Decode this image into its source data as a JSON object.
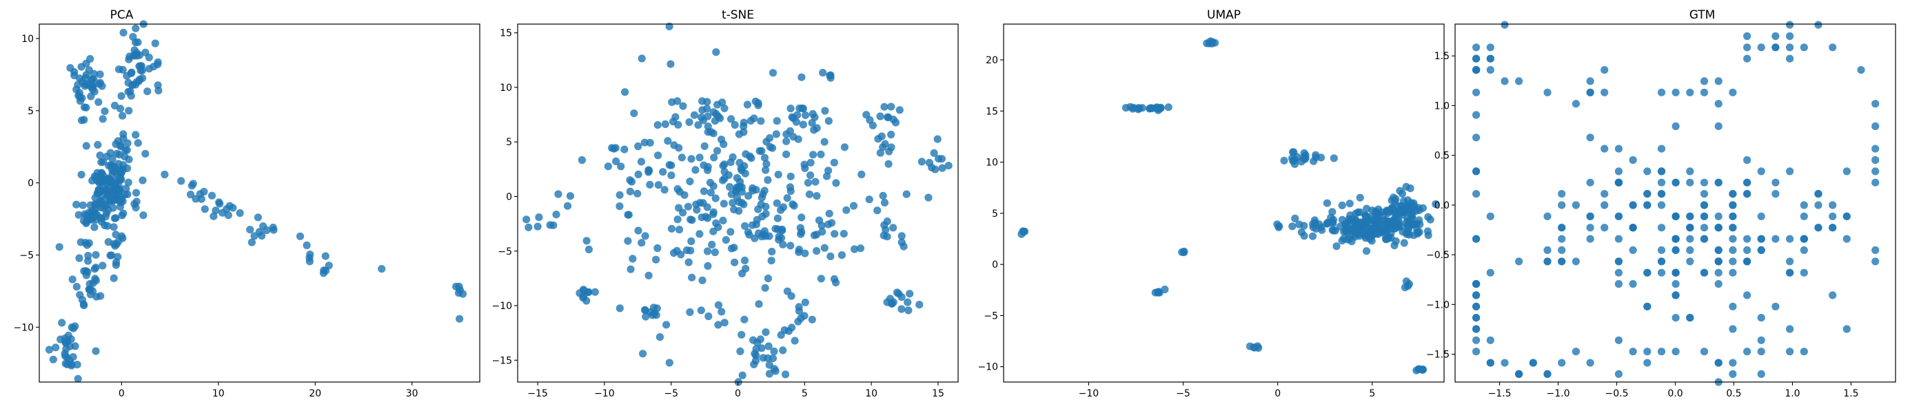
{
  "colors": {
    "marker": "#1f77b4",
    "marker_opacity": 0.8
  },
  "chart_data": [
    {
      "type": "scatter",
      "title": "PCA",
      "xlim": [
        -8.5,
        37
      ],
      "ylim": [
        -13.8,
        11
      ],
      "xticks": [
        0,
        10,
        20,
        30
      ],
      "yticks": [
        -10,
        -5,
        0,
        5,
        10
      ],
      "xtick_labels": [
        "0",
        "10",
        "20",
        "30"
      ],
      "ytick_labels": [
        "−10",
        "−5",
        "0",
        "5",
        "10"
      ],
      "grid": false,
      "clusters": [
        {
          "cx": -1,
          "cy": 0,
          "sx": 1.4,
          "sy": 1.5,
          "n": 150
        },
        {
          "cx": -3.5,
          "cy": 6.8,
          "sx": 0.9,
          "sy": 1.0,
          "n": 40
        },
        {
          "cx": 2,
          "cy": 8.5,
          "sx": 1.0,
          "sy": 0.9,
          "n": 40
        },
        {
          "cx": 0.5,
          "cy": 6.3,
          "sx": 0.5,
          "sy": 0.8,
          "n": 10
        },
        {
          "cx": -3,
          "cy": -2.5,
          "sx": 0.8,
          "sy": 0.8,
          "n": 30
        },
        {
          "cx": -0.5,
          "cy": -4.5,
          "sx": 0.5,
          "sy": 0.8,
          "n": 15
        },
        {
          "cx": -3.5,
          "cy": -6.5,
          "sx": 0.8,
          "sy": 1.2,
          "n": 30
        },
        {
          "cx": -5.5,
          "cy": -11.5,
          "sx": 0.9,
          "sy": 0.9,
          "n": 30
        },
        {
          "cx": 8,
          "cy": -1.0,
          "sx": 1.0,
          "sy": 0.5,
          "n": 10
        },
        {
          "cx": 11,
          "cy": -2.0,
          "sx": 1.0,
          "sy": 0.4,
          "n": 10
        },
        {
          "cx": 14,
          "cy": -3.4,
          "sx": 1.2,
          "sy": 0.5,
          "n": 10
        },
        {
          "cx": 19.5,
          "cy": -4.5,
          "sx": 0.6,
          "sy": 0.5,
          "n": 5
        },
        {
          "cx": 21,
          "cy": -5.8,
          "sx": 0.6,
          "sy": 0.4,
          "n": 5
        },
        {
          "cx": 26.8,
          "cy": -5.9,
          "sx": 0.1,
          "sy": 0.1,
          "n": 1
        },
        {
          "cx": 35,
          "cy": -7.8,
          "sx": 0.4,
          "sy": 0.4,
          "n": 6
        }
      ]
    },
    {
      "type": "scatter",
      "title": "t-SNE",
      "xlim": [
        -16.5,
        16.5
      ],
      "ylim": [
        -17,
        15.8
      ],
      "xticks": [
        -15,
        -10,
        -5,
        0,
        5,
        10,
        15
      ],
      "yticks": [
        -15,
        -10,
        -5,
        0,
        5,
        10,
        15
      ],
      "xtick_labels": [
        "−15",
        "−10",
        "−5",
        "0",
        "5",
        "10",
        "15"
      ],
      "ytick_labels": [
        "−15",
        "−10",
        "−5",
        "0",
        "5",
        "10",
        "15"
      ],
      "grid": false,
      "clusters": [
        {
          "cx": 0,
          "cy": 0,
          "sx": 5.5,
          "sy": 5.5,
          "n": 320
        },
        {
          "cx": -3,
          "cy": 7.5,
          "sx": 1.0,
          "sy": 0.8,
          "n": 20
        },
        {
          "cx": 0.5,
          "cy": 0.3,
          "sx": 0.8,
          "sy": 0.8,
          "n": 15
        },
        {
          "cx": 11,
          "cy": 7.5,
          "sx": 0.7,
          "sy": 0.7,
          "n": 10
        },
        {
          "cx": 10.5,
          "cy": 5.0,
          "sx": 0.6,
          "sy": 0.6,
          "n": 8
        },
        {
          "cx": 14.5,
          "cy": 2.8,
          "sx": 0.6,
          "sy": 0.6,
          "n": 8
        },
        {
          "cx": 12.2,
          "cy": -9.5,
          "sx": 0.8,
          "sy": 0.5,
          "n": 12
        },
        {
          "cx": 11.5,
          "cy": -2.0,
          "sx": 0.5,
          "sy": 0.6,
          "n": 6
        },
        {
          "cx": 2,
          "cy": -14.5,
          "sx": 1.0,
          "sy": 1.2,
          "n": 25
        },
        {
          "cx": -11.5,
          "cy": -9,
          "sx": 0.7,
          "sy": 0.5,
          "n": 8
        },
        {
          "cx": -14.5,
          "cy": -2.5,
          "sx": 0.6,
          "sy": 0.4,
          "n": 6
        },
        {
          "cx": -6.2,
          "cy": -10.8,
          "sx": 0.6,
          "sy": 0.4,
          "n": 8
        },
        {
          "cx": 4.8,
          "cy": -11.0,
          "sx": 0.5,
          "sy": 0.5,
          "n": 8
        },
        {
          "cx": 4.8,
          "cy": 7.5,
          "sx": 0.6,
          "sy": 0.6,
          "n": 10
        },
        {
          "cx": 6.8,
          "cy": 11.2,
          "sx": 0.3,
          "sy": 0.3,
          "n": 4
        },
        {
          "cx": -5,
          "cy": -15,
          "sx": 0.1,
          "sy": 0.1,
          "n": 1
        }
      ]
    },
    {
      "type": "scatter",
      "title": "UMAP",
      "xlim": [
        -14.5,
        8.8
      ],
      "ylim": [
        -11.5,
        23.5
      ],
      "xticks": [
        -10,
        -5,
        0,
        5
      ],
      "yticks": [
        -10,
        -5,
        0,
        5,
        10,
        15,
        20
      ],
      "xtick_labels": [
        "−10",
        "−5",
        "0",
        "5"
      ],
      "ytick_labels": [
        "−10",
        "−5",
        "0",
        "5",
        "10",
        "15",
        "20"
      ],
      "grid": false,
      "clusters": [
        {
          "cx": 5.2,
          "cy": 3.8,
          "sx": 1.3,
          "sy": 0.9,
          "n": 200
        },
        {
          "cx": 7,
          "cy": 6.0,
          "sx": 0.5,
          "sy": 0.8,
          "n": 30
        },
        {
          "cx": 2,
          "cy": 3.8,
          "sx": 0.8,
          "sy": 0.3,
          "n": 20
        },
        {
          "cx": 1.2,
          "cy": 10.4,
          "sx": 0.7,
          "sy": 0.3,
          "n": 20
        },
        {
          "cx": -6.8,
          "cy": 15.3,
          "sx": 0.5,
          "sy": 0.1,
          "n": 20
        },
        {
          "cx": -3.5,
          "cy": 21.6,
          "sx": 0.15,
          "sy": 0.1,
          "n": 6
        },
        {
          "cx": -13.5,
          "cy": 3.2,
          "sx": 0.08,
          "sy": 0.08,
          "n": 4
        },
        {
          "cx": 0,
          "cy": 3.7,
          "sx": 0.08,
          "sy": 0.08,
          "n": 3
        },
        {
          "cx": -5,
          "cy": 1.2,
          "sx": 0.05,
          "sy": 0.05,
          "n": 3
        },
        {
          "cx": -6.2,
          "cy": -2.7,
          "sx": 0.15,
          "sy": 0.15,
          "n": 6
        },
        {
          "cx": -1.2,
          "cy": -8.1,
          "sx": 0.15,
          "sy": 0.1,
          "n": 5
        },
        {
          "cx": 6.8,
          "cy": -2.0,
          "sx": 0.08,
          "sy": 0.15,
          "n": 4
        },
        {
          "cx": 7.5,
          "cy": -10.3,
          "sx": 0.15,
          "sy": 0.08,
          "n": 6
        }
      ]
    },
    {
      "type": "scatter",
      "title": "GTM",
      "xlim": [
        -1.88,
        1.88
      ],
      "ylim": [
        -1.78,
        1.82
      ],
      "xticks": [
        -1.5,
        -1.0,
        -0.5,
        0.0,
        0.5,
        1.0,
        1.5
      ],
      "yticks": [
        -1.5,
        -1.0,
        -0.5,
        0.0,
        0.5,
        1.0,
        1.5
      ],
      "xtick_labels": [
        "−1.5",
        "−1.0",
        "−0.5",
        "0.0",
        "0.5",
        "1.0",
        "1.5"
      ],
      "ytick_labels": [
        "−1.5",
        "−1.0",
        "−0.5",
        "0.0",
        "0.5",
        "1.0",
        "1.5"
      ],
      "grid": false,
      "grid_step": [
        0.1217,
        0.1133
      ],
      "grid_origin": [
        -1.7,
        -1.7
      ],
      "clusters": [
        {
          "cx": 0.2,
          "cy": -0.2,
          "sx": 0.45,
          "sy": 0.45,
          "n": 150
        },
        {
          "cx": -1.6,
          "cy": 1.5,
          "sx": 0.15,
          "sy": 0.15,
          "n": 12
        },
        {
          "cx": 1.0,
          "cy": 1.6,
          "sx": 0.3,
          "sy": 0.1,
          "n": 15
        },
        {
          "cx": -1.7,
          "cy": -1.0,
          "sx": 0.05,
          "sy": 0.4,
          "n": 15
        },
        {
          "cx": -1.4,
          "cy": -1.65,
          "sx": 0.25,
          "sy": 0.05,
          "n": 10
        },
        {
          "cx": -0.4,
          "cy": -1.6,
          "sx": 0.25,
          "sy": 0.1,
          "n": 10
        },
        {
          "cx": 0.6,
          "cy": -1.5,
          "sx": 0.3,
          "sy": 0.15,
          "n": 12
        },
        {
          "cx": -1.7,
          "cy": 0.2,
          "sx": 0.05,
          "sy": 0.5,
          "n": 10
        },
        {
          "cx": 1.3,
          "cy": -0.3,
          "sx": 0.2,
          "sy": 0.3,
          "n": 12
        },
        {
          "cx": 0.3,
          "cy": 1.15,
          "sx": 0.2,
          "sy": 0.05,
          "n": 8
        },
        {
          "cx": -0.8,
          "cy": 1.2,
          "sx": 0.4,
          "sy": 0.1,
          "n": 8
        },
        {
          "cx": -1.0,
          "cy": -0.4,
          "sx": 0.2,
          "sy": 0.2,
          "n": 12
        },
        {
          "cx": 1.7,
          "cy": 0.2,
          "sx": 0.05,
          "sy": 0.6,
          "n": 8
        },
        {
          "cx": -0.6,
          "cy": 0.0,
          "sx": 0.2,
          "sy": 0.3,
          "n": 14
        },
        {
          "cx": 1.5,
          "cy": -1.25,
          "sx": 0.02,
          "sy": 0.02,
          "n": 1
        }
      ]
    }
  ]
}
